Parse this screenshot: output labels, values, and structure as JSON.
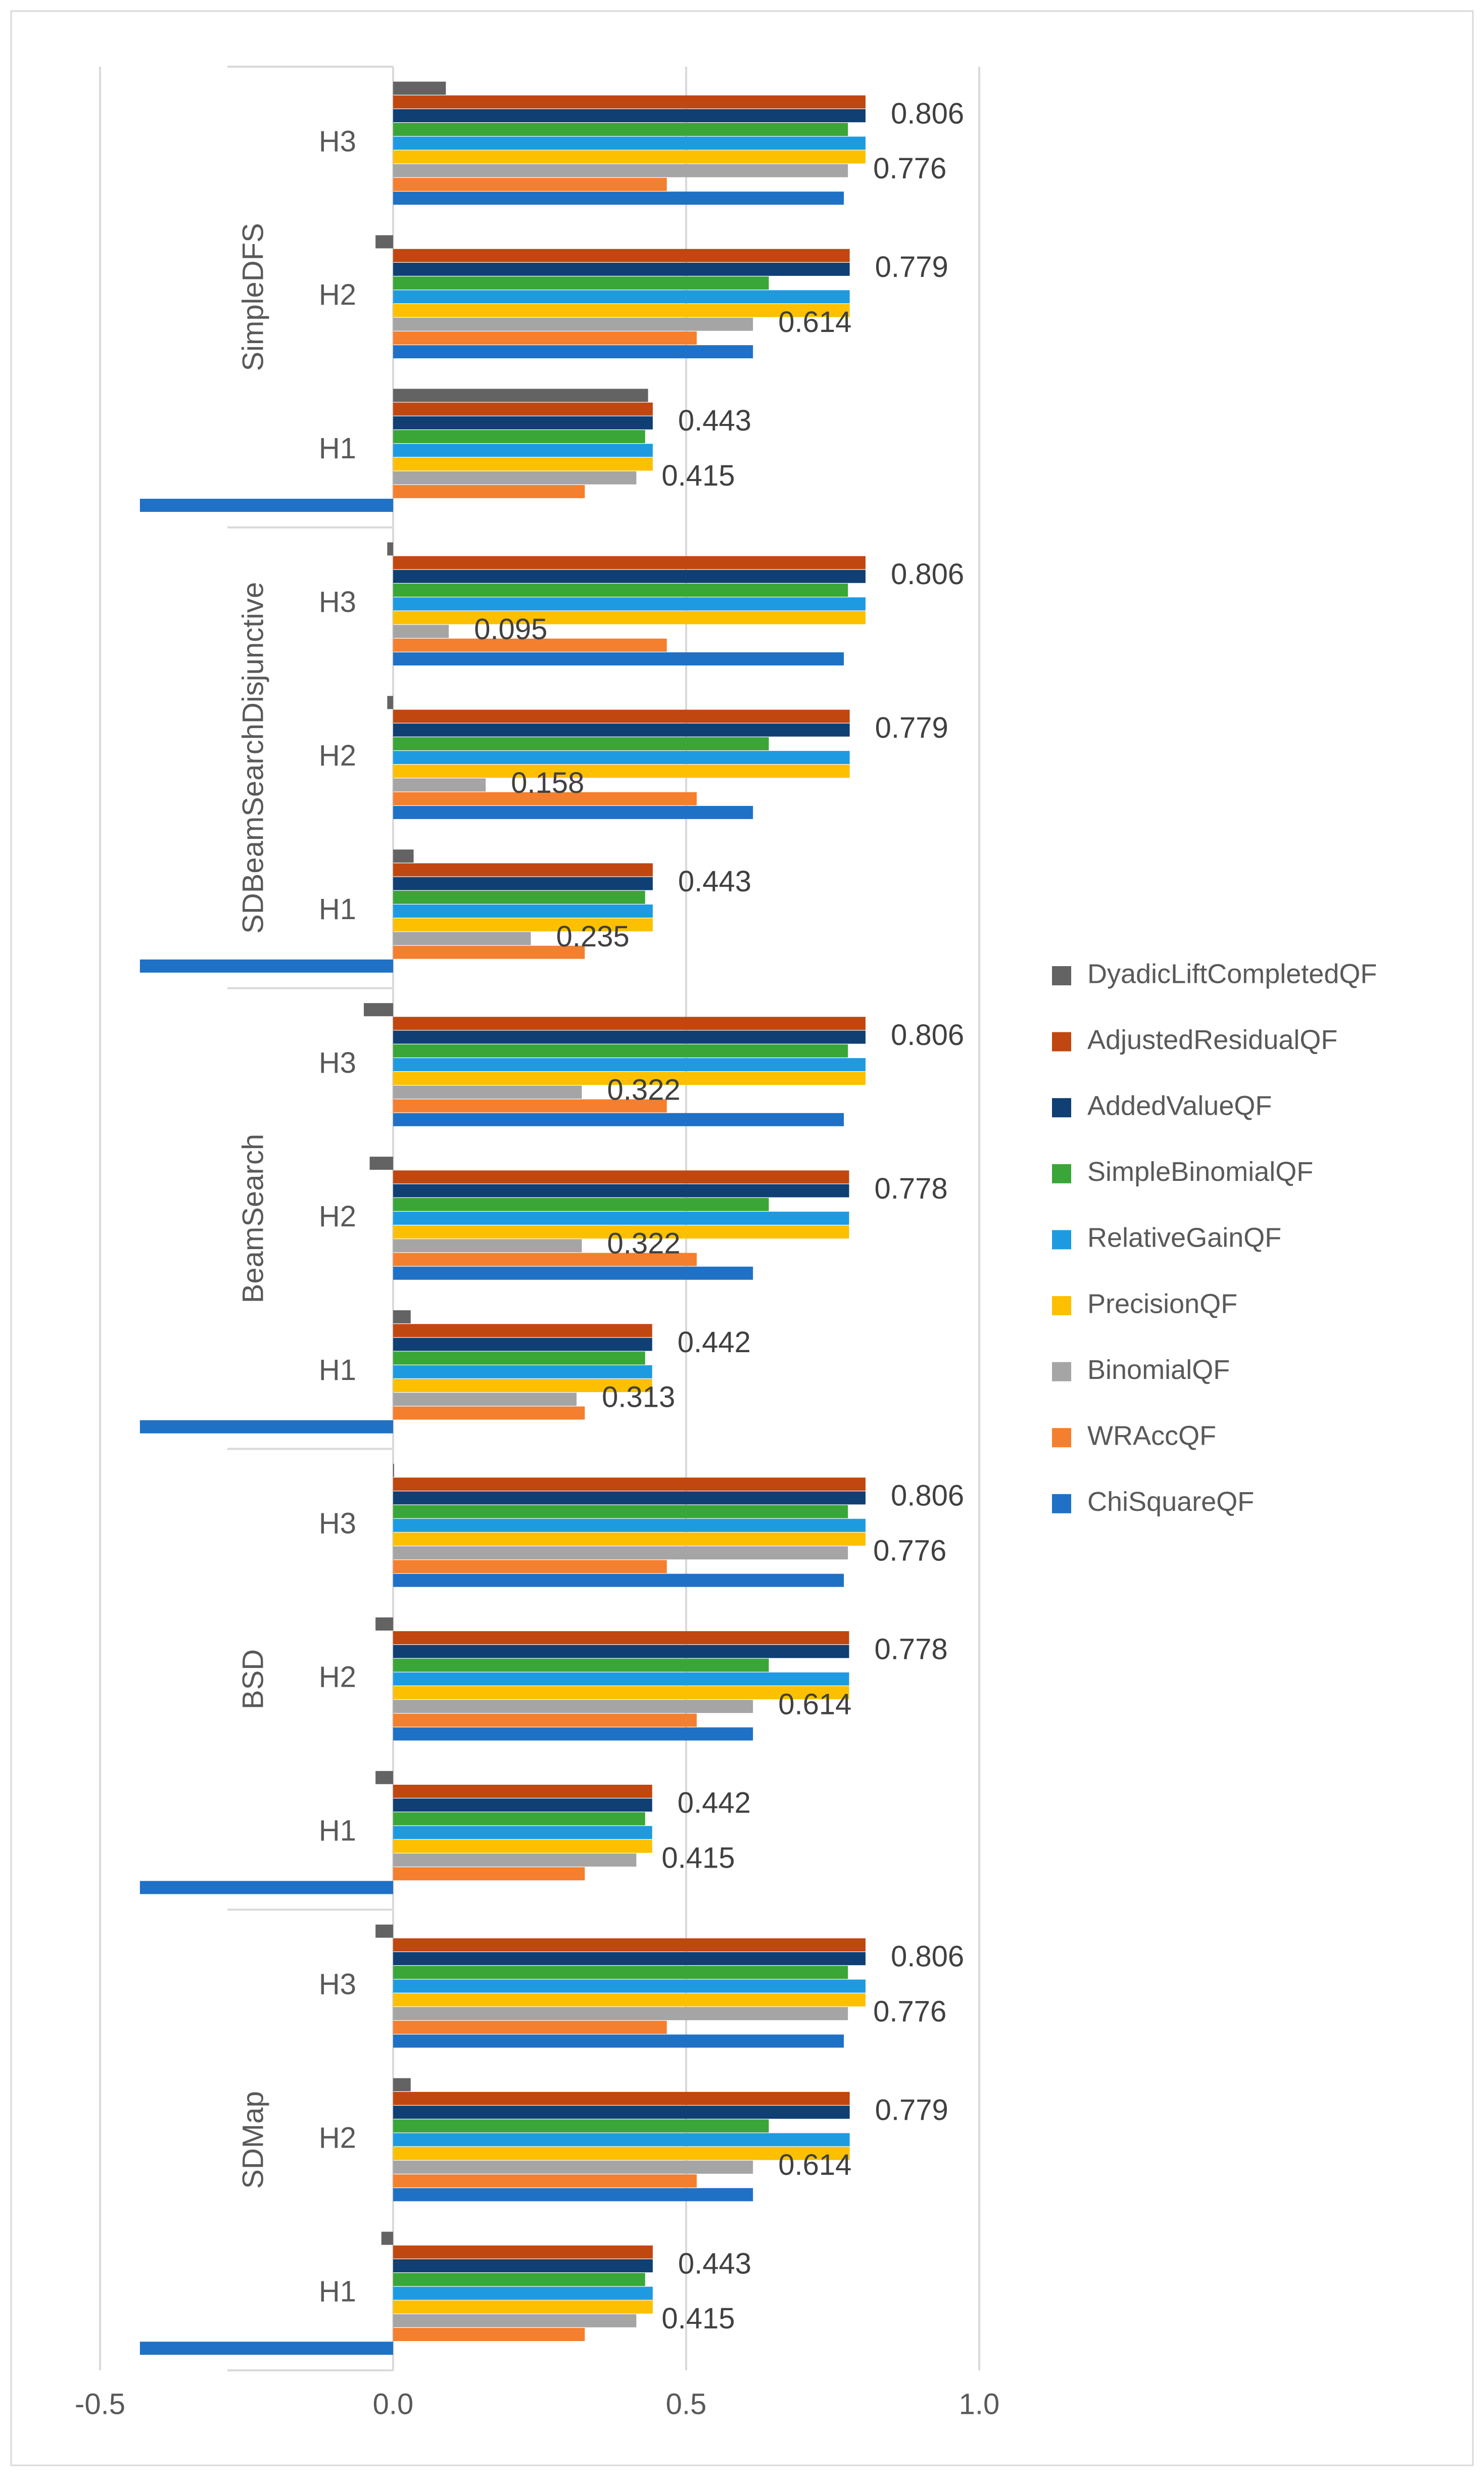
{
  "chart_data": {
    "type": "bar",
    "orientation": "horizontal",
    "title": "",
    "xlabel": "",
    "ylabel": "",
    "xlim": [
      -0.5,
      1.0
    ],
    "x_ticks": [
      -0.5,
      0.0,
      0.5,
      1.0
    ],
    "x_tick_labels": [
      "-0.5",
      "0.0",
      "0.5",
      "1.0"
    ],
    "grid": "vertical",
    "legend_position": "right",
    "groups": [
      "SimpleDFS",
      "SDBeamSearchDisjunctive",
      "BeamSearch",
      "BSD",
      "SDMap"
    ],
    "subcategories": [
      "H3",
      "H2",
      "H1"
    ],
    "series": [
      {
        "name": "DyadicLiftCompletedQF",
        "color": "#636363",
        "values": [
          [
            0.09,
            -0.03,
            0.435
          ],
          [
            -0.01,
            -0.01,
            0.035
          ],
          [
            -0.05,
            -0.04,
            0.03
          ],
          [
            0.0,
            -0.03,
            -0.03
          ],
          [
            -0.03,
            0.03,
            -0.02
          ]
        ]
      },
      {
        "name": "AdjustedResidualQF",
        "color": "#c0470f",
        "values": [
          [
            0.806,
            0.779,
            0.443
          ],
          [
            0.806,
            0.779,
            0.443
          ],
          [
            0.806,
            0.778,
            0.442
          ],
          [
            0.806,
            0.778,
            0.442
          ],
          [
            0.806,
            0.779,
            0.443
          ]
        ]
      },
      {
        "name": "AddedValueQF",
        "color": "#0f3f73",
        "values": [
          [
            0.806,
            0.779,
            0.443
          ],
          [
            0.806,
            0.779,
            0.443
          ],
          [
            0.806,
            0.778,
            0.442
          ],
          [
            0.806,
            0.778,
            0.442
          ],
          [
            0.806,
            0.779,
            0.443
          ]
        ]
      },
      {
        "name": "SimpleBinomialQF",
        "color": "#3aa638",
        "values": [
          [
            0.776,
            0.641,
            0.43
          ],
          [
            0.776,
            0.641,
            0.43
          ],
          [
            0.776,
            0.641,
            0.43
          ],
          [
            0.776,
            0.641,
            0.43
          ],
          [
            0.776,
            0.641,
            0.43
          ]
        ]
      },
      {
        "name": "RelativeGainQF",
        "color": "#1e9be0",
        "values": [
          [
            0.806,
            0.779,
            0.443
          ],
          [
            0.806,
            0.779,
            0.443
          ],
          [
            0.806,
            0.778,
            0.442
          ],
          [
            0.806,
            0.778,
            0.442
          ],
          [
            0.806,
            0.779,
            0.443
          ]
        ]
      },
      {
        "name": "PrecisionQF",
        "color": "#fcc000",
        "values": [
          [
            0.806,
            0.779,
            0.443
          ],
          [
            0.806,
            0.779,
            0.443
          ],
          [
            0.806,
            0.778,
            0.442
          ],
          [
            0.806,
            0.778,
            0.442
          ],
          [
            0.806,
            0.779,
            0.443
          ]
        ]
      },
      {
        "name": "BinomialQF",
        "color": "#a5a5a5",
        "values": [
          [
            0.776,
            0.614,
            0.415
          ],
          [
            0.095,
            0.158,
            0.235
          ],
          [
            0.322,
            0.322,
            0.313
          ],
          [
            0.776,
            0.614,
            0.415
          ],
          [
            0.776,
            0.614,
            0.415
          ]
        ]
      },
      {
        "name": "WRAccQF",
        "color": "#f47f2e",
        "values": [
          [
            0.467,
            0.518,
            0.327
          ],
          [
            0.467,
            0.518,
            0.327
          ],
          [
            0.467,
            0.518,
            0.327
          ],
          [
            0.467,
            0.518,
            0.327
          ],
          [
            0.467,
            0.518,
            0.327
          ]
        ]
      },
      {
        "name": "ChiSquareQF",
        "color": "#1f71c5",
        "values": [
          [
            0.769,
            0.614,
            -0.432
          ],
          [
            0.769,
            0.614,
            -0.432
          ],
          [
            0.769,
            0.614,
            -0.432
          ],
          [
            0.769,
            0.614,
            -0.432
          ],
          [
            0.769,
            0.614,
            -0.432
          ]
        ]
      }
    ],
    "data_labels": [
      [
        [
          "0.806",
          "0.776"
        ],
        [
          "0.779",
          "0.614"
        ],
        [
          "0.443",
          "0.415"
        ]
      ],
      [
        [
          "0.806",
          "0.095"
        ],
        [
          "0.779",
          "0.158"
        ],
        [
          "0.443",
          "0.235"
        ]
      ],
      [
        [
          "0.806",
          "0.322"
        ],
        [
          "0.778",
          "0.322"
        ],
        [
          "0.442",
          "0.313"
        ]
      ],
      [
        [
          "0.806",
          "0.776"
        ],
        [
          "0.778",
          "0.614"
        ],
        [
          "0.442",
          "0.415"
        ]
      ],
      [
        [
          "0.806",
          "0.776"
        ],
        [
          "0.779",
          "0.614"
        ],
        [
          "0.443",
          "0.415"
        ]
      ]
    ]
  }
}
